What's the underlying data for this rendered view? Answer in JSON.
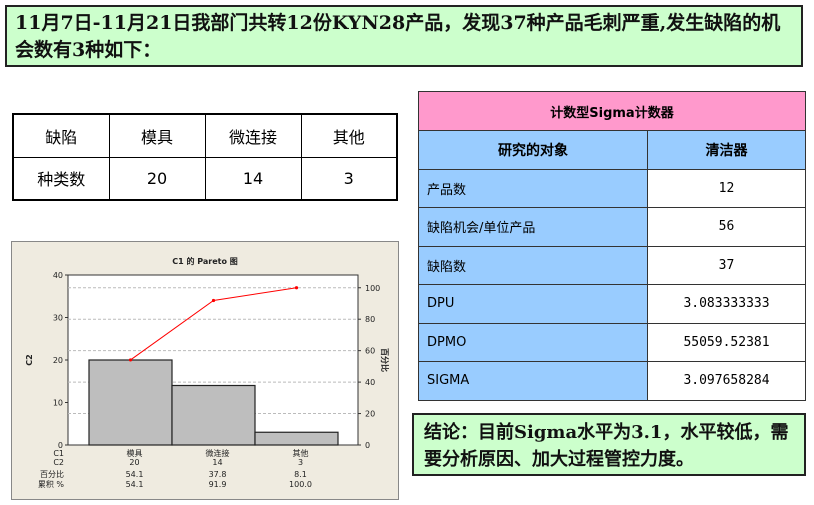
{
  "header": {
    "text": "11月7日-11月21日我部门共转12份KYN28产品，发现37种产品毛刺严重,发生缺陷的机会数有3种如下："
  },
  "defect_table": {
    "headers": [
      "缺陷",
      "模具",
      "微连接",
      "其他"
    ],
    "row": [
      "种类数",
      "20",
      "14",
      "3"
    ]
  },
  "sigma_table": {
    "title": "计数型Sigma计数器",
    "col1": "研究的对象",
    "col2": "清洁器",
    "rows": [
      {
        "label": "产品数",
        "value": "12"
      },
      {
        "label": "缺陷机会/单位产品",
        "value": "56"
      },
      {
        "label": "缺陷数",
        "value": "37"
      },
      {
        "label": "DPU",
        "value": "3.083333333"
      },
      {
        "label": "DPMO",
        "value": "55059.52381"
      },
      {
        "label": "SIGMA",
        "value": "3.097658284"
      }
    ]
  },
  "conclusion": {
    "text": "结论：目前Sigma水平为3.1，水平较低，需要分析原因、加大过程管控力度。"
  },
  "chart_data": {
    "type": "bar",
    "title": "C1 的 Pareto 图",
    "ylabel": "C2",
    "y2label": "百分比",
    "categories": [
      "模具",
      "微连接",
      "其他"
    ],
    "values": [
      20,
      14,
      3
    ],
    "ylim": [
      0,
      40
    ],
    "yticks": [
      0,
      10,
      20,
      30,
      40
    ],
    "y2ticks": [
      0,
      20,
      40,
      60,
      80,
      100
    ],
    "percent": [
      "54.1",
      "37.8",
      "8.1"
    ],
    "cumulative": [
      54.1,
      91.9,
      100.0
    ],
    "cumulative_labels": [
      "54.1",
      "91.9",
      "100.0"
    ],
    "row_labels": [
      "C1",
      "C2",
      "百分比",
      "累积 %"
    ],
    "bar_color": "#bebebe",
    "line_color": "#ff0000",
    "grid": true
  }
}
